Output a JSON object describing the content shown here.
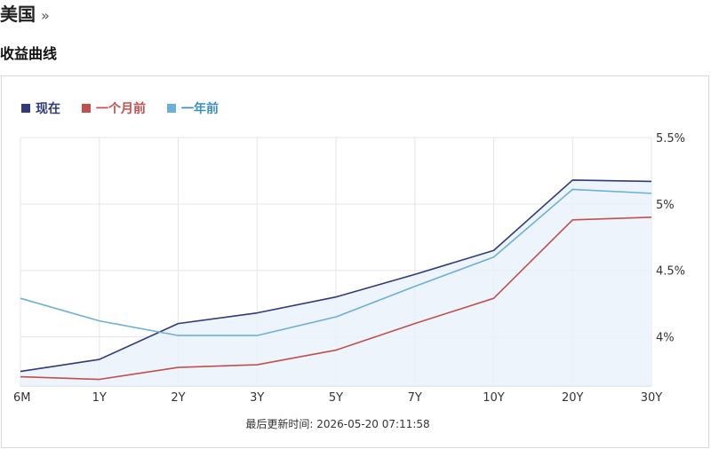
{
  "header": {
    "title": "美国",
    "arrow": "»"
  },
  "section": {
    "title": "收益曲线"
  },
  "footer": {
    "updated": "最后更新时间: 2026-05-20 07:11:58"
  },
  "chart_data": {
    "type": "line",
    "categories": [
      "6M",
      "1Y",
      "2Y",
      "3Y",
      "5Y",
      "7Y",
      "10Y",
      "20Y",
      "30Y"
    ],
    "y_ticks": [
      "5.5%",
      "5%",
      "4.5%",
      "4%"
    ],
    "y_tick_values": [
      5.5,
      5.0,
      4.5,
      4.0
    ],
    "ylim": [
      3.63,
      5.5
    ],
    "grid": true,
    "legend_position": "top-left",
    "series": [
      {
        "name": "现在",
        "color": "#2e3a7c",
        "fill": true,
        "values": [
          3.74,
          3.83,
          4.1,
          4.18,
          4.3,
          4.47,
          4.65,
          5.18,
          5.17
        ]
      },
      {
        "name": "一个月前",
        "color": "#c0504d",
        "fill": false,
        "values": [
          3.7,
          3.68,
          3.77,
          3.79,
          3.9,
          4.1,
          4.29,
          4.88,
          4.9
        ]
      },
      {
        "name": "一年前",
        "color": "#6bb0d6",
        "fill": false,
        "values": [
          4.29,
          4.12,
          4.01,
          4.01,
          4.15,
          4.38,
          4.6,
          5.11,
          5.08
        ]
      }
    ]
  }
}
